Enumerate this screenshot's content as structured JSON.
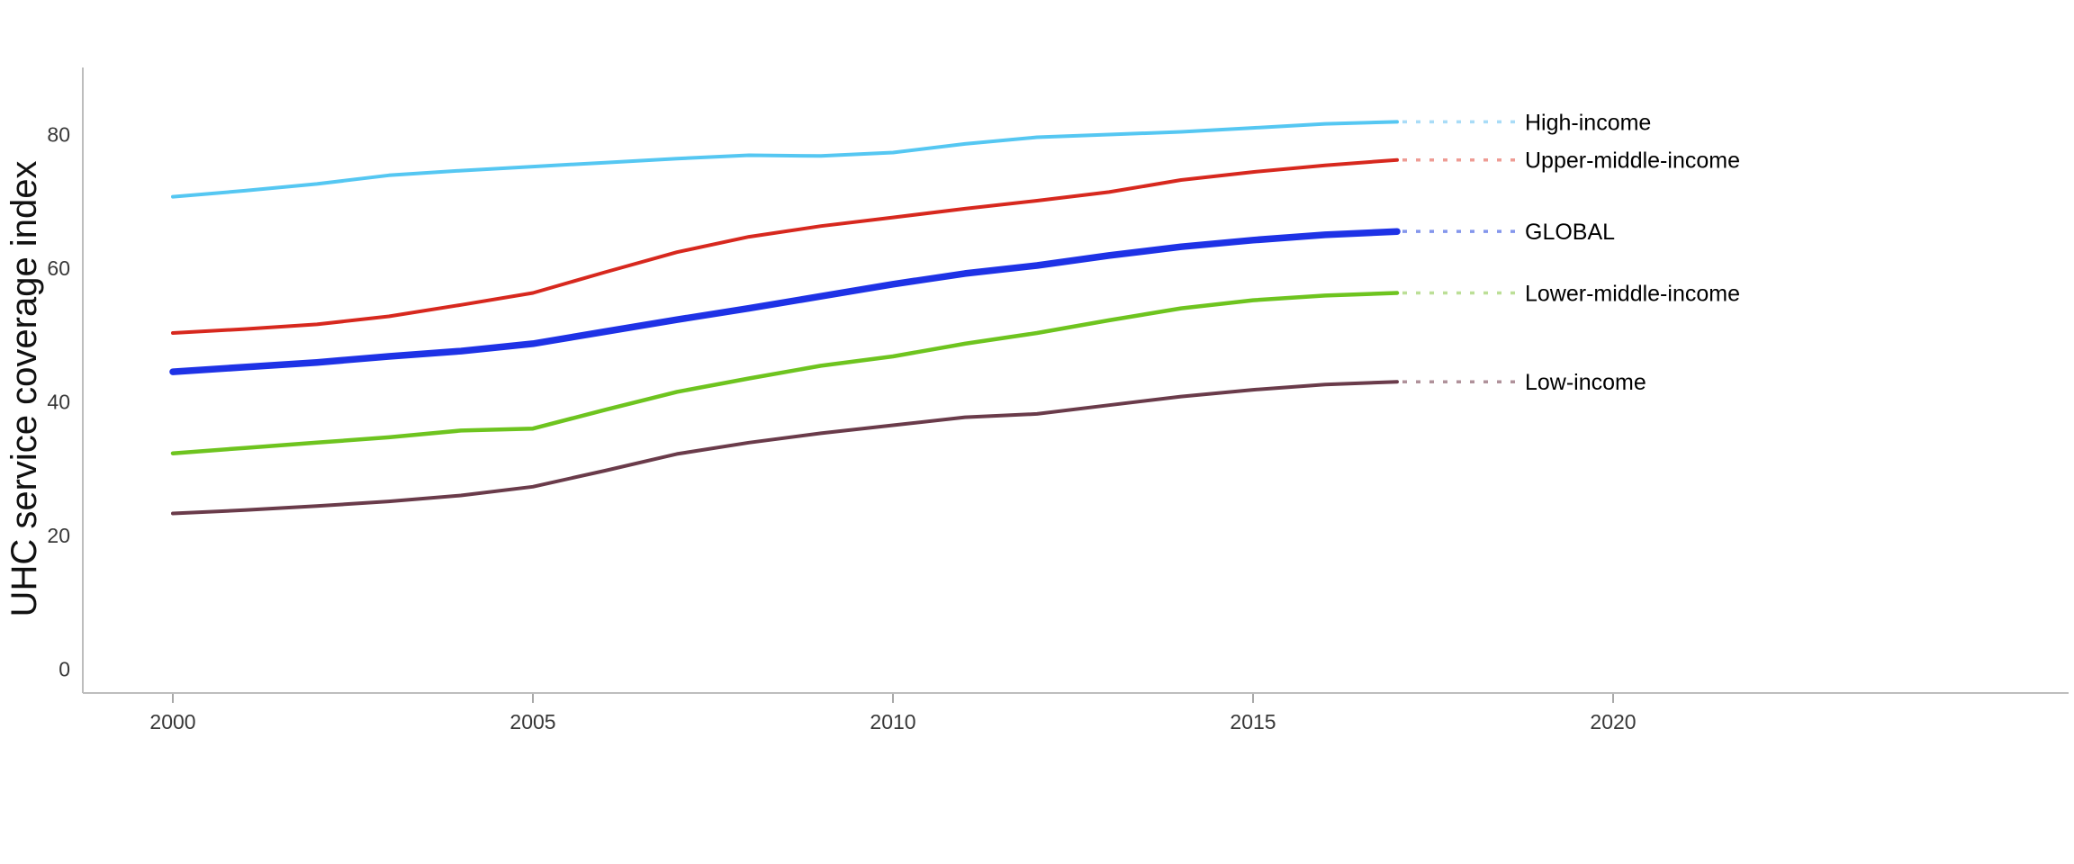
{
  "chart_data": {
    "type": "line",
    "title": "",
    "xlabel": "",
    "ylabel": "UHC service coverage index",
    "grid": false,
    "legend_position": "end-of-line-labels-right",
    "xlim": [
      1998.75,
      2026.3
    ],
    "ylim": [
      0,
      90
    ],
    "xticks": [
      2000,
      2005,
      2010,
      2015,
      2020
    ],
    "yticks": [
      0,
      20,
      40,
      60,
      80
    ],
    "years": [
      2000,
      2001,
      2002,
      2003,
      2004,
      2005,
      2006,
      2007,
      2008,
      2009,
      2010,
      2011,
      2012,
      2013,
      2014,
      2015,
      2016,
      2017
    ],
    "series": [
      {
        "name": "High-income",
        "color": "#55C7F2",
        "leader_color": "#A9DCF7",
        "line_width": 4,
        "values": [
          70.7,
          71.6,
          72.6,
          73.9,
          74.6,
          75.2,
          75.8,
          76.4,
          76.9,
          76.8,
          77.3,
          78.6,
          79.6,
          80.0,
          80.4,
          81.0,
          81.6,
          81.9
        ]
      },
      {
        "name": "Upper-middle-income",
        "color": "#D7281E",
        "leader_color": "#EE9C94",
        "line_width": 4,
        "values": [
          50.3,
          50.9,
          51.6,
          52.8,
          54.5,
          56.3,
          59.4,
          62.4,
          64.7,
          66.3,
          67.6,
          68.9,
          70.1,
          71.4,
          73.2,
          74.4,
          75.4,
          76.2
        ]
      },
      {
        "name": "GLOBAL",
        "color": "#1E32E6",
        "leader_color": "#8496EC",
        "line_width": 7.5,
        "values": [
          44.5,
          45.2,
          45.9,
          46.8,
          47.6,
          48.7,
          50.5,
          52.3,
          54.0,
          55.8,
          57.6,
          59.2,
          60.4,
          61.9,
          63.2,
          64.2,
          65.0,
          65.5
        ]
      },
      {
        "name": "Lower-middle-income",
        "color": "#6EC41F",
        "leader_color": "#BCDF97",
        "line_width": 4.5,
        "values": [
          32.3,
          33.1,
          33.9,
          34.7,
          35.7,
          36.0,
          38.8,
          41.5,
          43.5,
          45.4,
          46.8,
          48.7,
          50.3,
          52.2,
          54.0,
          55.2,
          55.9,
          56.3
        ]
      },
      {
        "name": "Low-income",
        "color": "#6A3B4A",
        "leader_color": "#B0929B",
        "line_width": 4,
        "values": [
          23.3,
          23.8,
          24.4,
          25.1,
          26.0,
          27.3,
          29.7,
          32.2,
          33.9,
          35.3,
          36.5,
          37.7,
          38.2,
          39.5,
          40.8,
          41.8,
          42.6,
          43.0
        ]
      }
    ]
  }
}
